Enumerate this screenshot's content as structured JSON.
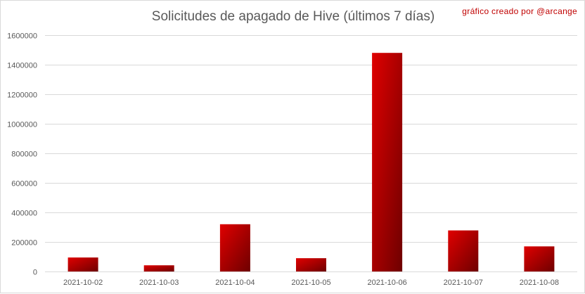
{
  "chart_data": {
    "type": "bar",
    "title": "Solicitudes de apagado de Hive (últimos 7 días)",
    "credit": "gráfico creado por @arcange",
    "categories": [
      "2021-10-02",
      "2021-10-03",
      "2021-10-04",
      "2021-10-05",
      "2021-10-06",
      "2021-10-07",
      "2021-10-08"
    ],
    "values": [
      95000,
      42000,
      320000,
      90000,
      1480000,
      278000,
      170000
    ],
    "ylim": [
      0,
      1600000
    ],
    "yticks": [
      0,
      200000,
      400000,
      600000,
      800000,
      1000000,
      1200000,
      1400000,
      1600000
    ],
    "grid": true,
    "legend": "none",
    "colors": {
      "bar_light": "#e00000",
      "bar_dark": "#6e0000",
      "grid": "#d9d9d9"
    }
  }
}
